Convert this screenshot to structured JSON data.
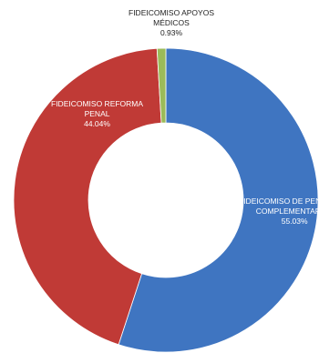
{
  "chart_data": {
    "type": "pie",
    "title": "",
    "slices": [
      {
        "label_lines": [
          "FIDEICOMISO DE PENSIONES",
          "COMPLEMENTARIAS"
        ],
        "percent_label": "55.03%",
        "value": 55.03,
        "color": "#3f75c1"
      },
      {
        "label_lines": [
          "FIDEICOMISO REFORMA",
          "PENAL"
        ],
        "percent_label": "44.04%",
        "value": 44.04,
        "color": "#c03a36"
      },
      {
        "label_lines": [
          "FIDEICOMISO APOYOS",
          "MÉDICOS"
        ],
        "percent_label": "0.93%",
        "value": 0.93,
        "color": "#9bbb59"
      }
    ]
  }
}
